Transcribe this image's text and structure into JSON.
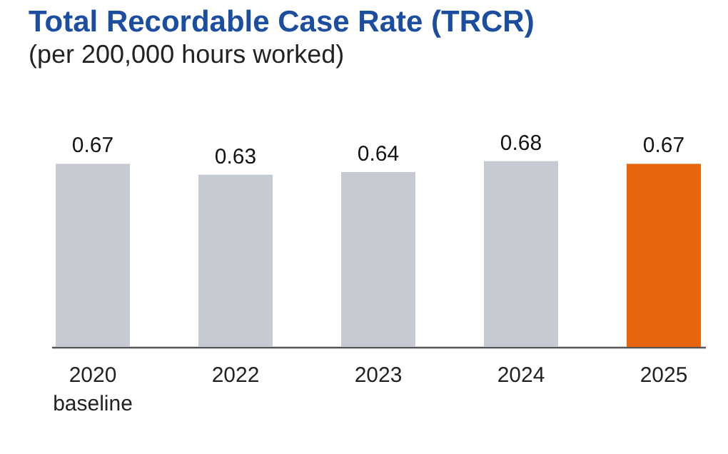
{
  "chart_data": {
    "type": "bar",
    "title": "Total Recordable Case Rate (TRCR)",
    "subtitle": "(per 200,000 hours worked)",
    "categories": [
      "2020\nbaseline",
      "2022",
      "2023",
      "2024",
      "2025"
    ],
    "values": [
      0.67,
      0.63,
      0.64,
      0.68,
      0.67
    ],
    "colors": [
      "#c5cad3",
      "#c5cad3",
      "#c5cad3",
      "#c5cad3",
      "#e8650e"
    ],
    "data_labels": true
  }
}
